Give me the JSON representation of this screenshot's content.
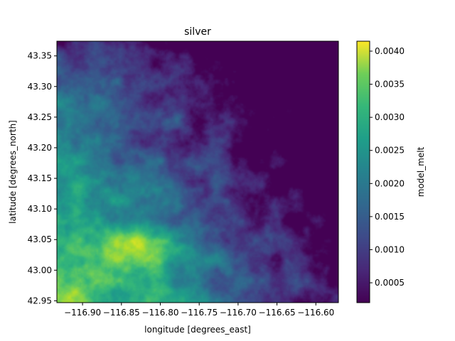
{
  "chart_data": {
    "type": "heatmap",
    "title": "silver",
    "xlabel": "longitude [degrees_east]",
    "ylabel": "latitude [degrees_north]",
    "xlim": [
      -116.933,
      -116.571
    ],
    "ylim": [
      42.947,
      43.374
    ],
    "x_ticks": [
      -116.9,
      -116.85,
      -116.8,
      -116.75,
      -116.7,
      -116.65,
      -116.6
    ],
    "x_tick_labels": [
      "−116.90",
      "−116.85",
      "−116.80",
      "−116.75",
      "−116.70",
      "−116.65",
      "−116.60"
    ],
    "y_ticks": [
      42.95,
      43.0,
      43.05,
      43.1,
      43.15,
      43.2,
      43.25,
      43.3,
      43.35
    ],
    "y_tick_labels": [
      "42.95",
      "43.00",
      "43.05",
      "43.10",
      "43.15",
      "43.20",
      "43.25",
      "43.30",
      "43.35"
    ],
    "colorbar": {
      "label": "model_melt",
      "colormap": "viridis",
      "range": [
        0.0002,
        0.00415
      ],
      "ticks": [
        0.0005,
        0.001,
        0.0015,
        0.002,
        0.0025,
        0.003,
        0.0035,
        0.004
      ],
      "tick_labels": [
        "0.0005",
        "0.0010",
        "0.0015",
        "0.0020",
        "0.0025",
        "0.0030",
        "0.0035",
        "0.0040"
      ]
    },
    "grid": false,
    "field_summary": {
      "max_location": [
        -116.81,
        43.035
      ],
      "min_region": "north-east",
      "high_region": "south-west"
    }
  }
}
